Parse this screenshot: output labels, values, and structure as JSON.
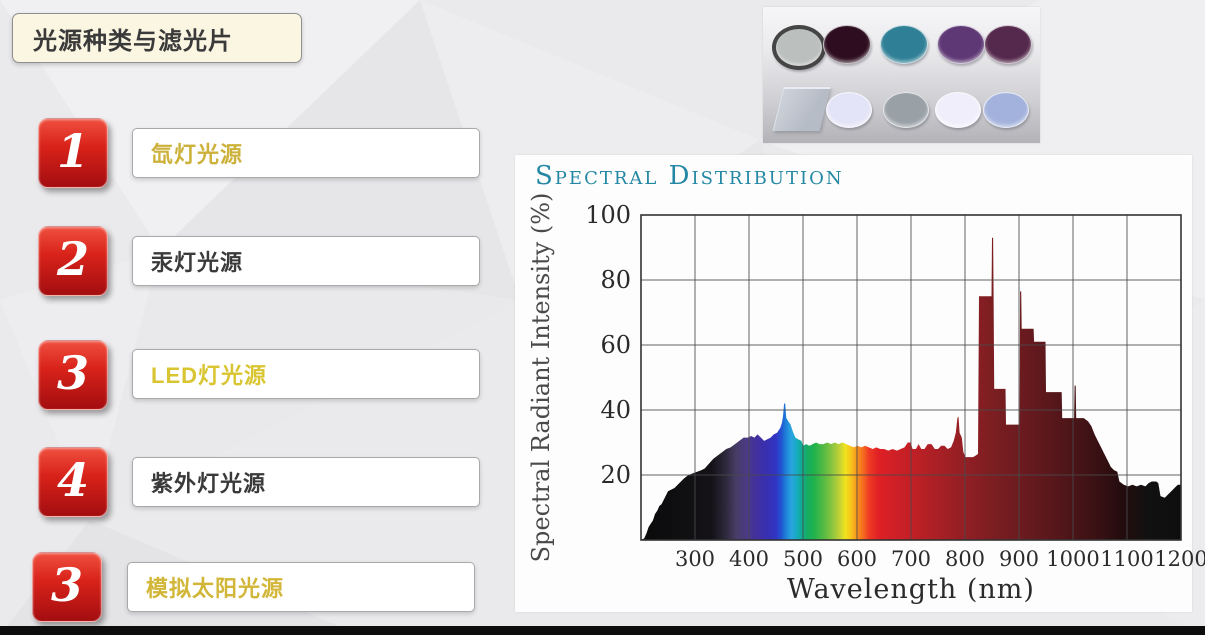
{
  "slide_title": {
    "label": "光源种类与滤光片"
  },
  "list": {
    "badge_colors": {
      "top": "#ef5040",
      "bottom": "#a30d10",
      "digit": "#ffffff"
    },
    "items": [
      {
        "number": "1",
        "label": "氙灯光源",
        "label_color": "#ccb13a"
      },
      {
        "number": "2",
        "label": "汞灯光源",
        "label_color": "#3a3a3a"
      },
      {
        "number": "3",
        "label": "LED灯光源",
        "label_color": "#d9c531"
      },
      {
        "number": "4",
        "label": "紫外灯光源",
        "label_color": "#3a3a3a"
      },
      {
        "number": "3",
        "label": "模拟太阳光源",
        "label_color": "#d2b637"
      }
    ]
  },
  "filters_photo": {
    "rows": [
      {
        "items": [
          {
            "shape": "circle",
            "name": "nd-gray-filter",
            "face": "#bbbfbd",
            "ring": "#454545"
          },
          {
            "shape": "circle",
            "name": "dark-magenta-filter",
            "face": "#2d0d1f"
          },
          {
            "shape": "circle",
            "name": "teal-filter",
            "face": "#2f7f96"
          },
          {
            "shape": "circle",
            "name": "purple-filter",
            "face": "#5e3875"
          },
          {
            "shape": "circle",
            "name": "plum-filter",
            "face": "#55294d"
          }
        ]
      },
      {
        "items": [
          {
            "shape": "plate",
            "name": "glass-plate",
            "face": "#b6bcc6"
          },
          {
            "shape": "circle",
            "name": "pale-lavender-filter",
            "face": "#e4e4f8"
          },
          {
            "shape": "circle",
            "name": "gray-filter",
            "face": "#99a1a7"
          },
          {
            "shape": "circle",
            "name": "near-white-filter",
            "face": "#f1eefb"
          },
          {
            "shape": "circle",
            "name": "periwinkle-filter",
            "face": "#a3b2dc"
          }
        ]
      }
    ]
  },
  "chart_data": {
    "type": "area",
    "title": "Spectral Distribution",
    "title_color": "#2488a4",
    "xlabel": "Wavelength (nm)",
    "ylabel": "Spectral Radiant Intensity (%)",
    "xlim": [
      200,
      1200
    ],
    "ylim": [
      0,
      100
    ],
    "x_ticks": [
      300,
      400,
      500,
      600,
      700,
      800,
      900,
      1000,
      1100,
      1200
    ],
    "y_ticks": [
      20,
      40,
      60,
      80,
      100
    ],
    "grid": true,
    "grid_color": "#4a4a4a",
    "points": [
      [
        200,
        0
      ],
      [
        206,
        0.5
      ],
      [
        210,
        2
      ],
      [
        214,
        4
      ],
      [
        218,
        5
      ],
      [
        222,
        6
      ],
      [
        226,
        8
      ],
      [
        230,
        9
      ],
      [
        234,
        10.5
      ],
      [
        238,
        11
      ],
      [
        244,
        13
      ],
      [
        250,
        15
      ],
      [
        256,
        15.5
      ],
      [
        262,
        16
      ],
      [
        268,
        17
      ],
      [
        274,
        18
      ],
      [
        280,
        19
      ],
      [
        288,
        20
      ],
      [
        296,
        20.5
      ],
      [
        304,
        21
      ],
      [
        312,
        21.5
      ],
      [
        318,
        22
      ],
      [
        326,
        23.5
      ],
      [
        334,
        25
      ],
      [
        342,
        26
      ],
      [
        350,
        27
      ],
      [
        358,
        28
      ],
      [
        366,
        28.5
      ],
      [
        374,
        29.5
      ],
      [
        382,
        30.5
      ],
      [
        390,
        31.5
      ],
      [
        398,
        31.5
      ],
      [
        404,
        32
      ],
      [
        410,
        31.5
      ],
      [
        416,
        32.5
      ],
      [
        422,
        31.5
      ],
      [
        428,
        30.5
      ],
      [
        434,
        31
      ],
      [
        440,
        31.5
      ],
      [
        446,
        32.5
      ],
      [
        452,
        33
      ],
      [
        458,
        34.5
      ],
      [
        461,
        36
      ],
      [
        463,
        38
      ],
      [
        465,
        42
      ],
      [
        467,
        42
      ],
      [
        469,
        37.5
      ],
      [
        473,
        36.5
      ],
      [
        477,
        35.5
      ],
      [
        481,
        33.5
      ],
      [
        486,
        31.5
      ],
      [
        491,
        31
      ],
      [
        497,
        30.5
      ],
      [
        500,
        29
      ],
      [
        506,
        29.5
      ],
      [
        512,
        29
      ],
      [
        518,
        29.5
      ],
      [
        524,
        30
      ],
      [
        531,
        29.5
      ],
      [
        538,
        29.5
      ],
      [
        545,
        30
      ],
      [
        552,
        29.5
      ],
      [
        559,
        30
      ],
      [
        566,
        29.5
      ],
      [
        573,
        30
      ],
      [
        580,
        29.5
      ],
      [
        587,
        29
      ],
      [
        594,
        28.5
      ],
      [
        601,
        29
      ],
      [
        608,
        28.5
      ],
      [
        615,
        29
      ],
      [
        622,
        28.5
      ],
      [
        629,
        28
      ],
      [
        636,
        28.5
      ],
      [
        643,
        28
      ],
      [
        650,
        28
      ],
      [
        658,
        27.5
      ],
      [
        666,
        28
      ],
      [
        674,
        27.5
      ],
      [
        681,
        28
      ],
      [
        688,
        28.5
      ],
      [
        694,
        30
      ],
      [
        699,
        30
      ],
      [
        703,
        28
      ],
      [
        709,
        28
      ],
      [
        714,
        29.5
      ],
      [
        719,
        28
      ],
      [
        725,
        28
      ],
      [
        731,
        29.5
      ],
      [
        738,
        29.5
      ],
      [
        744,
        28
      ],
      [
        750,
        28
      ],
      [
        756,
        29
      ],
      [
        762,
        29
      ],
      [
        768,
        28
      ],
      [
        774,
        28.5
      ],
      [
        779,
        30.5
      ],
      [
        783,
        33
      ],
      [
        786,
        37.5
      ],
      [
        788,
        38
      ],
      [
        790,
        33
      ],
      [
        794,
        31.5
      ],
      [
        797,
        27
      ],
      [
        801,
        25.5
      ],
      [
        808,
        25.5
      ],
      [
        815,
        25.5
      ],
      [
        820,
        26
      ],
      [
        824,
        26.5
      ],
      [
        826,
        75
      ],
      [
        849,
        75
      ],
      [
        850,
        93
      ],
      [
        852,
        93
      ],
      [
        853,
        75
      ],
      [
        854,
        46.5
      ],
      [
        875,
        46.5
      ],
      [
        876,
        35.5
      ],
      [
        901,
        35.5
      ],
      [
        902,
        76.5
      ],
      [
        904,
        76.5
      ],
      [
        905,
        65
      ],
      [
        927,
        65
      ],
      [
        928,
        61
      ],
      [
        949,
        61
      ],
      [
        950,
        45.5
      ],
      [
        979,
        45.5
      ],
      [
        980,
        37.5
      ],
      [
        1002,
        37.5
      ],
      [
        1003,
        47.5
      ],
      [
        1005,
        47.5
      ],
      [
        1006,
        37.5
      ],
      [
        1020,
        37.5
      ],
      [
        1028,
        36.5
      ],
      [
        1034,
        35
      ],
      [
        1040,
        32.5
      ],
      [
        1046,
        30.5
      ],
      [
        1052,
        28.5
      ],
      [
        1058,
        26.5
      ],
      [
        1064,
        24.5
      ],
      [
        1070,
        22.5
      ],
      [
        1076,
        21.5
      ],
      [
        1082,
        21
      ],
      [
        1086,
        18
      ],
      [
        1094,
        17
      ],
      [
        1102,
        16.5
      ],
      [
        1110,
        17
      ],
      [
        1118,
        16.5
      ],
      [
        1126,
        17
      ],
      [
        1134,
        16.5
      ],
      [
        1140,
        17.5
      ],
      [
        1146,
        18
      ],
      [
        1154,
        18
      ],
      [
        1158,
        17.5
      ],
      [
        1162,
        13.5
      ],
      [
        1170,
        13
      ],
      [
        1176,
        14
      ],
      [
        1182,
        15
      ],
      [
        1188,
        16
      ],
      [
        1194,
        17
      ],
      [
        1200,
        17
      ]
    ],
    "spectrum_stops": [
      [
        200,
        "#0a0a0a"
      ],
      [
        330,
        "#141217"
      ],
      [
        355,
        "#2b2738"
      ],
      [
        375,
        "#463c63"
      ],
      [
        395,
        "#4b3a85"
      ],
      [
        415,
        "#41309f"
      ],
      [
        435,
        "#3730b4"
      ],
      [
        450,
        "#2f35c4"
      ],
      [
        460,
        "#2255d2"
      ],
      [
        468,
        "#1e7fd8"
      ],
      [
        478,
        "#2aa3e0"
      ],
      [
        488,
        "#19acc4"
      ],
      [
        496,
        "#10ab9a"
      ],
      [
        508,
        "#16ad62"
      ],
      [
        520,
        "#1fb24c"
      ],
      [
        540,
        "#5bbb43"
      ],
      [
        555,
        "#8ec63f"
      ],
      [
        568,
        "#c3d234"
      ],
      [
        578,
        "#efe41e"
      ],
      [
        588,
        "#f8c71b"
      ],
      [
        600,
        "#f7941d"
      ],
      [
        612,
        "#f4691f"
      ],
      [
        622,
        "#ee3b24"
      ],
      [
        640,
        "#e02025"
      ],
      [
        665,
        "#d02026"
      ],
      [
        700,
        "#c22026"
      ],
      [
        740,
        "#ad2025"
      ],
      [
        790,
        "#961f24"
      ],
      [
        850,
        "#7c1e22"
      ],
      [
        920,
        "#661a1e"
      ],
      [
        980,
        "#52161a"
      ],
      [
        1040,
        "#3b1114"
      ],
      [
        1090,
        "#240c0d"
      ],
      [
        1140,
        "#111111"
      ],
      [
        1200,
        "#0e0e0e"
      ]
    ]
  }
}
